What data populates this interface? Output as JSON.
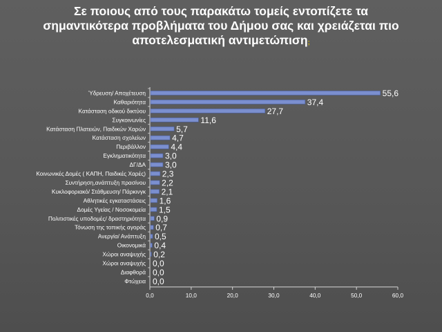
{
  "title_lines": [
    "Σε ποιους από τους παρακάτω τομείς εντοπίζετε τα",
    "σημαντικότερα προβλήματα του Δήμου σας και χρειάζεται πιο",
    "αποτελεσματική αντιμετώπιση"
  ],
  "title_trailing_mark": ";",
  "colors": {
    "background": "#585858",
    "bar": "#7b8fcf",
    "bar_edge": "#4a5fa0",
    "text": "#ffffff",
    "axis": "#d8d8d8"
  },
  "chart_data": {
    "type": "bar",
    "orientation": "horizontal",
    "categories": [
      "Ύδρευση/ Αποχέτευση",
      "Καθαριότητα",
      "Κατάσταση οδικού δικτύου",
      "Συγκοινωνίες",
      "Κατάσταση Πλατειών, Παιδικών Χαρών",
      "Κατάσταση σχολείων",
      "Περιβάλλον",
      "Εγκληματικότητα",
      "ΔΓ/ΔΑ",
      "Κοινωνικές Δομές ( ΚΑΠΗ, Παιδικές Χαρές)",
      "Συντήρηση,ανάπτυξη πρασίνου",
      "Κυκλοφοριακό/ Στάθμευση/ Πάρκινγκ",
      "Αθλητικές εγκαταστάσεις",
      "Δομές Υγείας / Νοσοκομεία",
      "Πολιτιστικές υποδομές/ δραστηριότητα",
      "Τόνωση της τοπικής αγοράς",
      "Ανεργία/ Ανάπτυξη",
      "Οικονομικά",
      "Χώροι αναψυχής",
      "Χώροι αναψυχής",
      "Διαφθορά",
      "Φτώχεια"
    ],
    "values": [
      55.6,
      37.4,
      27.7,
      11.6,
      5.7,
      4.7,
      4.4,
      3.0,
      3.0,
      2.3,
      2.2,
      2.1,
      1.6,
      1.5,
      0.9,
      0.7,
      0.5,
      0.4,
      0.2,
      0.0,
      0.0,
      0.0
    ],
    "value_labels": [
      "55,6",
      "37,4",
      "27,7",
      "11,6",
      "5,7",
      "4,7",
      "4,4",
      "3,0",
      "3,0",
      "2,3",
      "2,2",
      "2,1",
      "1,6",
      "1,5",
      "0,9",
      "0,7",
      "0,5",
      "0,4",
      "0,2",
      "0,0",
      "0,0",
      "0,0"
    ],
    "xticks": [
      0,
      10,
      20,
      30,
      40,
      50,
      60
    ],
    "xtick_labels": [
      "0,0",
      "10,0",
      "20,0",
      "30,0",
      "40,0",
      "50,0",
      "60,0"
    ],
    "xlim": [
      0,
      60
    ],
    "grid": false,
    "legend": "none"
  }
}
